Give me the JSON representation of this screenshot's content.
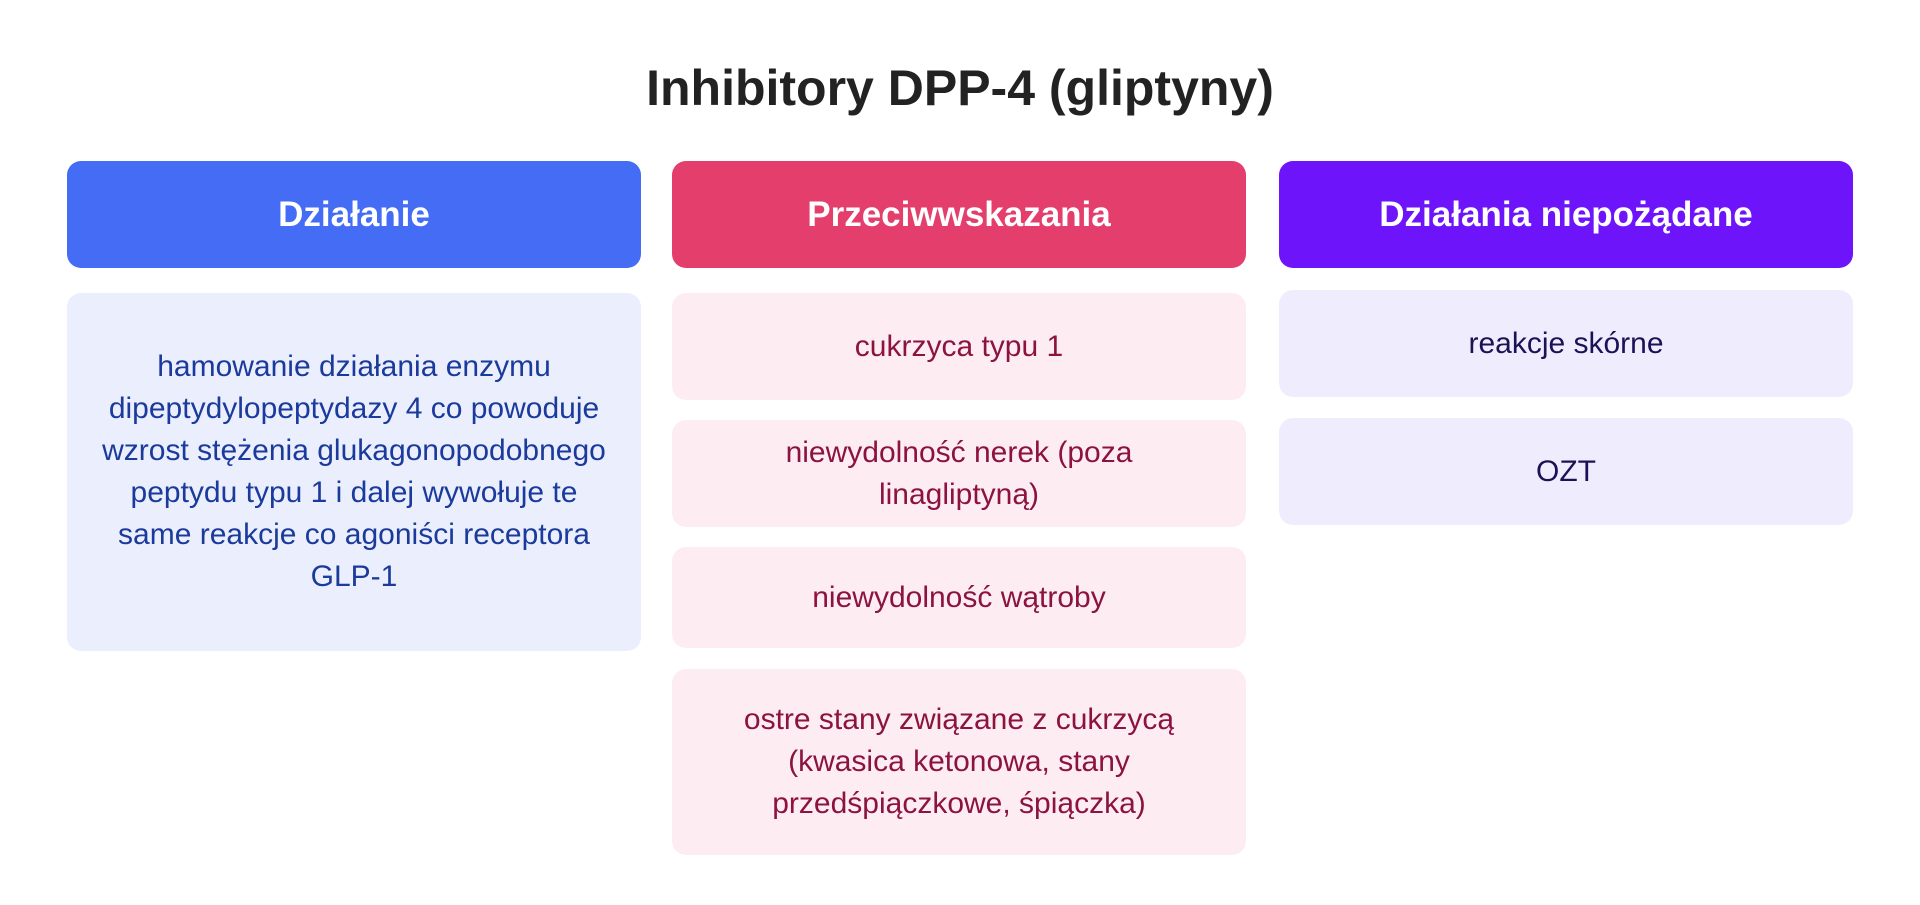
{
  "title": "Inhibitory DPP-4 (gliptyny)",
  "columns": [
    {
      "header": "Działanie",
      "header_color": "#446cf5",
      "items": [
        "hamowanie działania enzymu dipeptydylopeptydazy 4 co powoduje wzrost stężenia glukagonopodobnego peptydu typu 1 i dalej wywołuje te same reakcje co agoniści receptora GLP-1"
      ]
    },
    {
      "header": "Przeciwwskazania",
      "header_color": "#e33e6c",
      "items": [
        "cukrzyca typu 1",
        "niewydolność nerek (poza linagliptyną)",
        "niewydolność wątroby",
        "ostre stany związane z cukrzycą (kwasica ketonowa, stany przedśpiączkowe, śpiączka)"
      ]
    },
    {
      "header": "Działania niepożądane",
      "header_color": "#6e14fb",
      "items": [
        "reakcje skórne",
        "OZT"
      ]
    }
  ]
}
